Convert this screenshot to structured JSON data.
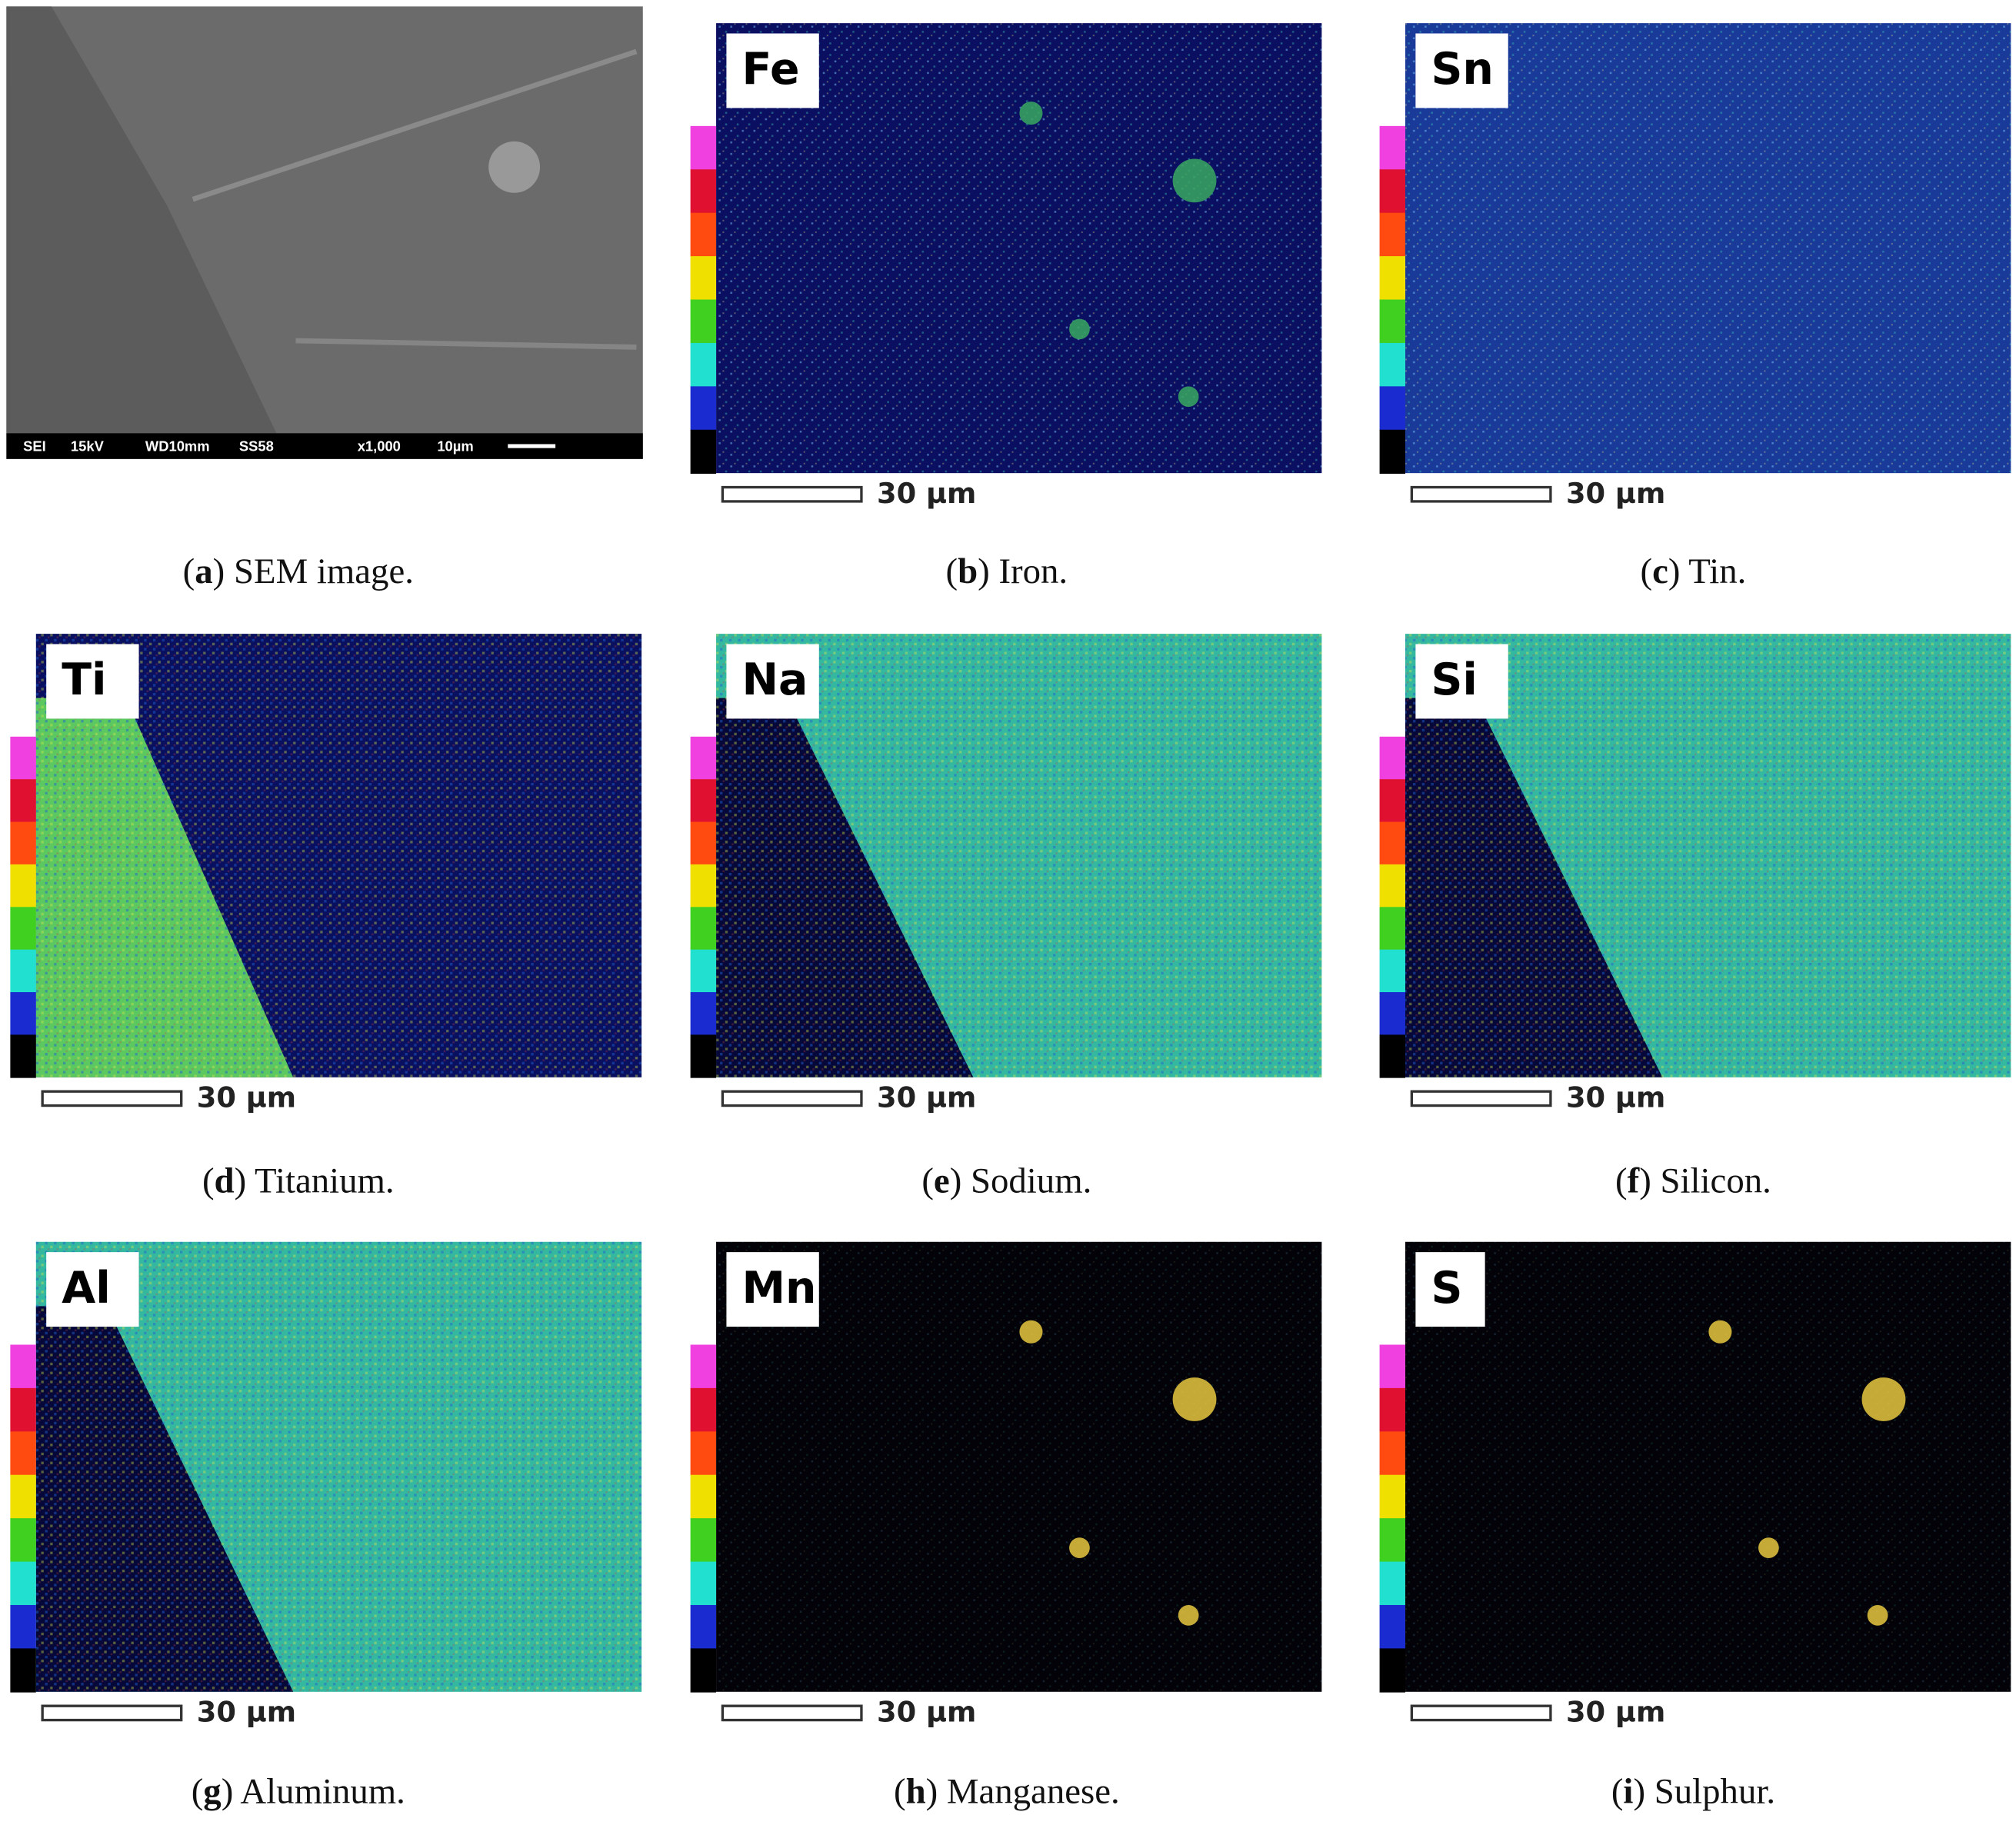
{
  "panels": [
    {
      "info_bar": [
        "SEI",
        "15kV",
        "WD10mm",
        "SS58",
        "x1,000",
        "10µm"
      ],
      "caption": [
        "(",
        "a",
        ") SEM image."
      ]
    },
    {
      "element": "Fe",
      "scale_bar": "30 µm",
      "caption": [
        "(",
        "b",
        ") Iron."
      ]
    },
    {
      "element": "Sn",
      "scale_bar": "30 µm",
      "caption": [
        "(",
        "c",
        ") Tin."
      ]
    },
    {
      "element": "Ti",
      "scale_bar": "30 µm",
      "caption": [
        "(",
        "d",
        ") Titanium."
      ]
    },
    {
      "element": "Na",
      "scale_bar": "30 µm",
      "caption": [
        "(",
        "e",
        ") Sodium."
      ]
    },
    {
      "element": "Si",
      "scale_bar": "30 µm",
      "caption": [
        "(",
        "f",
        ") Silicon."
      ]
    },
    {
      "element": "Al",
      "scale_bar": "30 µm",
      "caption": [
        "(",
        "g",
        ") Aluminum."
      ]
    },
    {
      "element": "Mn",
      "scale_bar": "30 µm",
      "caption": [
        "(",
        "h",
        ") Manganese."
      ]
    },
    {
      "element": "S",
      "scale_bar": "30 µm",
      "caption": [
        "(",
        "i",
        ") Sulphur."
      ]
    }
  ]
}
